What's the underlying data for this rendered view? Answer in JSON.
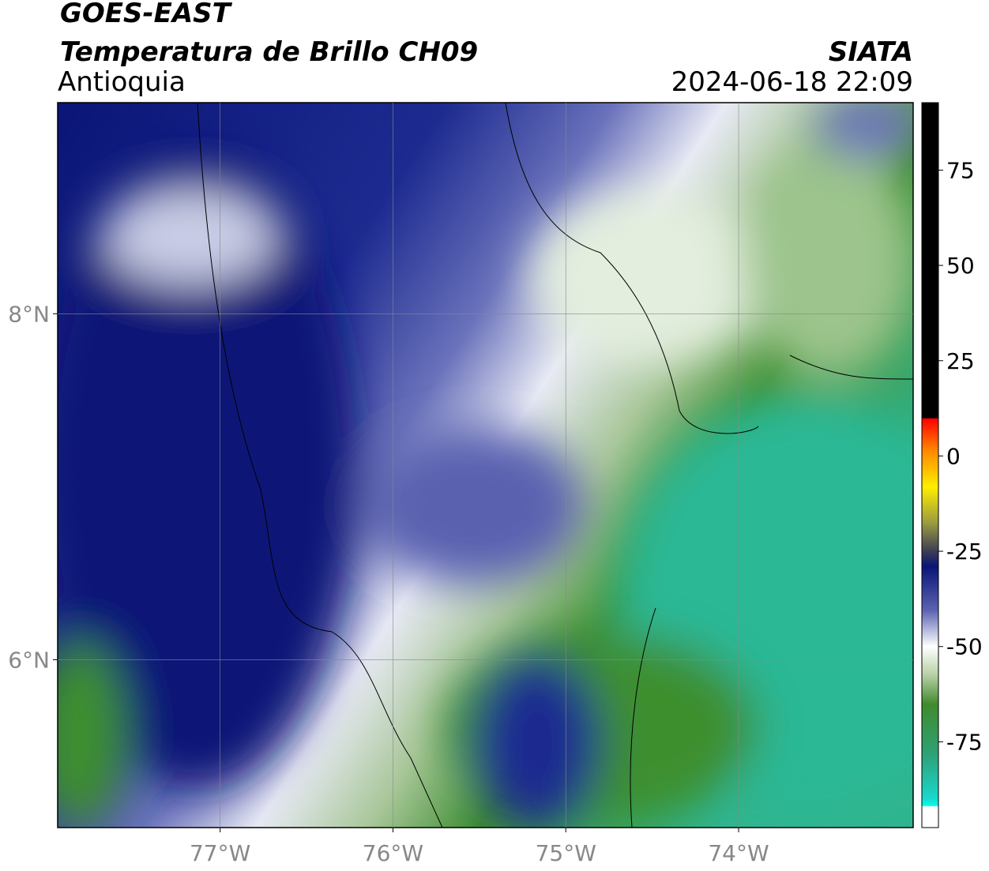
{
  "header": {
    "line1": "GOES-EAST",
    "line2": "Temperatura de Brillo CH09",
    "region": "Antioquia",
    "source": "SIATA",
    "datetime": "2024-06-18 22:09"
  },
  "map": {
    "lonlim": [
      -77.94,
      -72.99
    ],
    "latlim": [
      5.03,
      9.22
    ],
    "lat_ticks": [
      {
        "value": 8,
        "label": "8°N"
      },
      {
        "value": 6,
        "label": "6°N"
      }
    ],
    "lon_ticks": [
      {
        "value": -77,
        "label": "77°W"
      },
      {
        "value": -76,
        "label": "76°W"
      },
      {
        "value": -75,
        "label": "75°W"
      },
      {
        "value": -74,
        "label": "74°W"
      }
    ],
    "grid": true
  },
  "colorbar": {
    "lim": [
      -97.5,
      92.7
    ],
    "ticks": [
      75,
      50,
      25,
      0,
      -25,
      -50,
      -75
    ]
  }
}
